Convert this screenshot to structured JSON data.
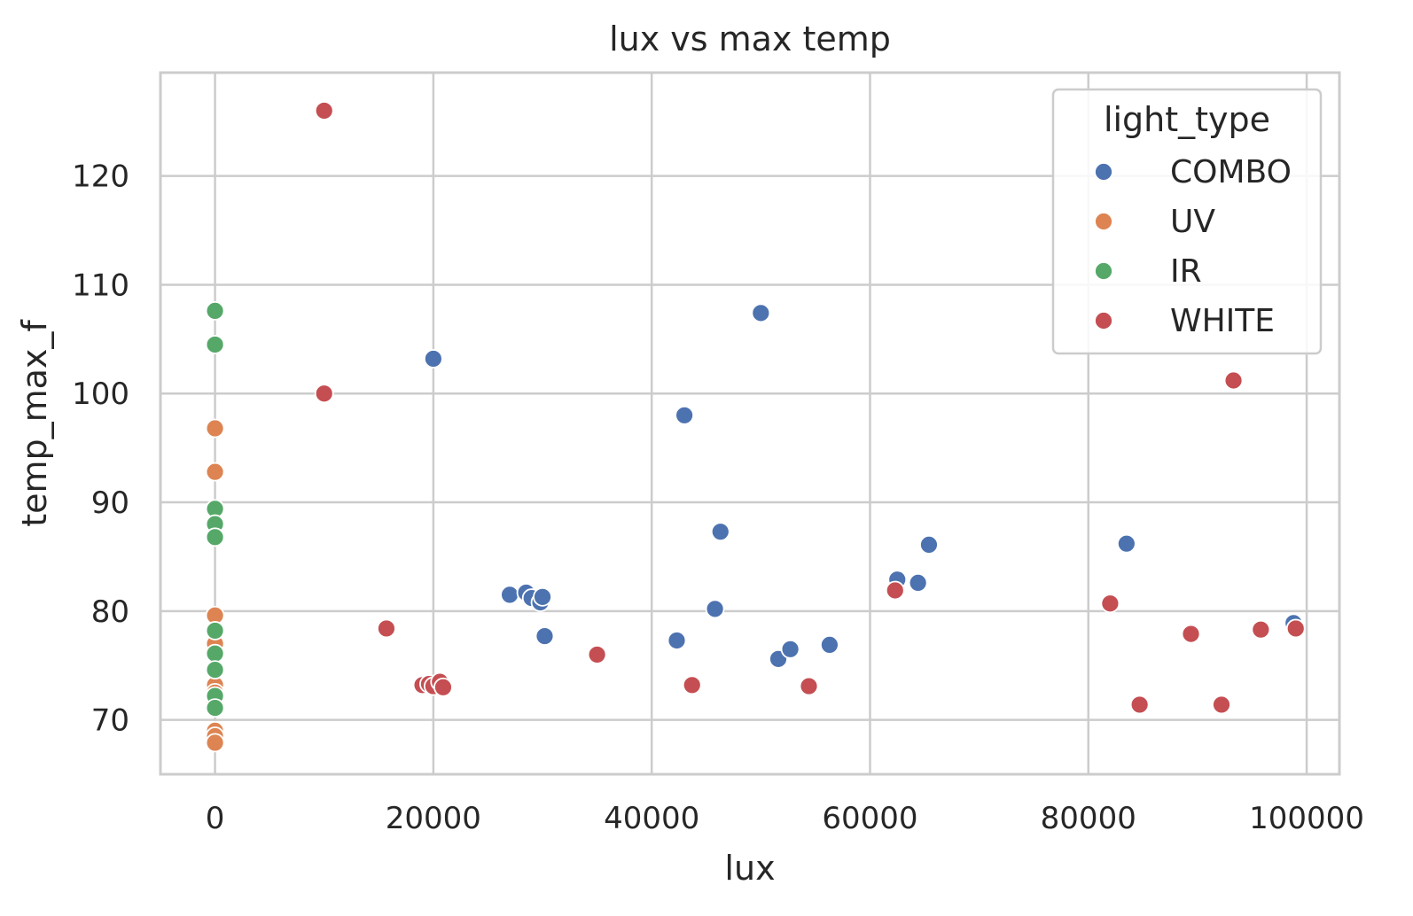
{
  "chart_data": {
    "type": "scatter",
    "title": "lux vs max temp",
    "xlabel": "lux",
    "ylabel": "temp_max_f",
    "xlim": [
      -5000,
      103000
    ],
    "ylim": [
      65,
      129.5
    ],
    "x_ticks": [
      0,
      20000,
      40000,
      60000,
      80000,
      100000
    ],
    "x_tick_labels": [
      "0",
      "20000",
      "40000",
      "60000",
      "80000",
      "100000"
    ],
    "y_ticks": [
      70,
      80,
      90,
      100,
      110,
      120
    ],
    "y_tick_labels": [
      "70",
      "80",
      "90",
      "100",
      "110",
      "120"
    ],
    "grid": true,
    "legend": {
      "title": "light_type",
      "placement": "top-right",
      "entries": [
        "COMBO",
        "UV",
        "IR",
        "WHITE"
      ]
    },
    "series": [
      {
        "name": "COMBO",
        "color": "#4c72b0",
        "points": [
          [
            20000,
            103.2
          ],
          [
            27000,
            81.5
          ],
          [
            28500,
            81.7
          ],
          [
            29000,
            81.2
          ],
          [
            29800,
            80.8
          ],
          [
            30000,
            81.3
          ],
          [
            30200,
            77.7
          ],
          [
            42300,
            77.3
          ],
          [
            43000,
            98.0
          ],
          [
            45800,
            80.2
          ],
          [
            46300,
            87.3
          ],
          [
            50000,
            107.4
          ],
          [
            51600,
            75.6
          ],
          [
            52700,
            76.5
          ],
          [
            56300,
            76.9
          ],
          [
            62500,
            82.9
          ],
          [
            64400,
            82.6
          ],
          [
            65400,
            86.1
          ],
          [
            83500,
            86.2
          ],
          [
            98800,
            78.9
          ]
        ]
      },
      {
        "name": "UV",
        "color": "#dd8452",
        "points": [
          [
            0,
            96.8
          ],
          [
            0,
            92.8
          ],
          [
            0,
            79.6
          ],
          [
            0,
            77.0
          ],
          [
            0,
            73.2
          ],
          [
            0,
            72.5
          ],
          [
            0,
            71.8
          ],
          [
            0,
            69.0
          ],
          [
            0,
            68.5
          ],
          [
            0,
            67.9
          ]
        ]
      },
      {
        "name": "IR",
        "color": "#55a868",
        "points": [
          [
            0,
            107.6
          ],
          [
            0,
            104.5
          ],
          [
            0,
            89.4
          ],
          [
            0,
            88.0
          ],
          [
            0,
            86.8
          ],
          [
            0,
            78.2
          ],
          [
            0,
            76.1
          ],
          [
            0,
            74.6
          ],
          [
            0,
            72.2
          ],
          [
            0,
            71.1
          ]
        ]
      },
      {
        "name": "WHITE",
        "color": "#c44e52",
        "points": [
          [
            10000,
            126.0
          ],
          [
            10000,
            100.0
          ],
          [
            15700,
            78.4
          ],
          [
            19000,
            73.2
          ],
          [
            19600,
            73.3
          ],
          [
            20000,
            73.1
          ],
          [
            20600,
            73.5
          ],
          [
            20900,
            73.0
          ],
          [
            35000,
            76.0
          ],
          [
            43700,
            73.2
          ],
          [
            54400,
            73.1
          ],
          [
            62300,
            81.9
          ],
          [
            82000,
            80.7
          ],
          [
            84700,
            71.4
          ],
          [
            89400,
            77.9
          ],
          [
            92200,
            71.4
          ],
          [
            93300,
            101.2
          ],
          [
            95800,
            78.3
          ],
          [
            99000,
            78.4
          ]
        ]
      }
    ]
  }
}
